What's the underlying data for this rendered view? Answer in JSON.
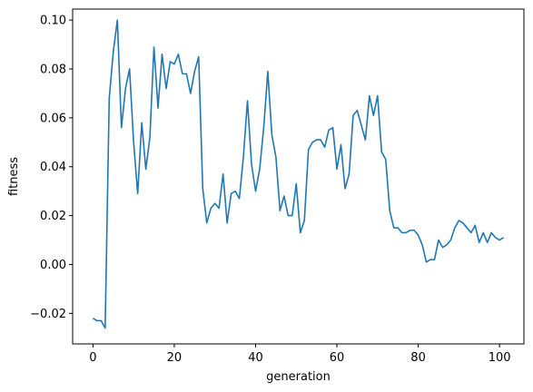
{
  "chart_data": {
    "type": "line",
    "title": "",
    "xlabel": "generation",
    "ylabel": "fitness",
    "xlim": [
      -5,
      106
    ],
    "ylim": [
      -0.0325,
      0.1045
    ],
    "xticks": [
      0,
      20,
      40,
      60,
      80,
      100
    ],
    "xtick_labels": [
      "0",
      "20",
      "40",
      "60",
      "80",
      "100"
    ],
    "yticks": [
      -0.02,
      0.0,
      0.02,
      0.04,
      0.06,
      0.08,
      0.1
    ],
    "ytick_labels": [
      "−0.02",
      "0.00",
      "0.02",
      "0.04",
      "0.06",
      "0.08",
      "0.10"
    ],
    "grid": false,
    "legend": "none",
    "line_color": "#1f77b4",
    "series": [
      {
        "x": [
          0,
          1,
          2,
          3,
          4,
          5,
          6,
          7,
          8,
          9,
          10,
          11,
          12,
          13,
          14,
          15,
          16,
          17,
          18,
          19,
          20,
          21,
          22,
          23,
          24,
          25,
          26,
          27,
          28,
          29,
          30,
          31,
          32,
          33,
          34,
          35,
          36,
          37,
          38,
          39,
          40,
          41,
          42,
          43,
          44,
          45,
          46,
          47,
          48,
          49,
          50,
          51,
          52,
          53,
          54,
          55,
          56,
          57,
          58,
          59,
          60,
          61,
          62,
          63,
          64,
          65,
          66,
          67,
          68,
          69,
          70,
          71,
          72,
          73,
          74,
          75,
          76,
          77,
          78,
          79,
          80,
          81,
          82,
          83,
          84,
          85,
          86,
          87,
          88,
          89,
          90,
          91,
          92,
          93,
          94,
          95,
          96,
          97,
          98,
          99,
          100,
          101
        ],
        "values": [
          -0.022,
          -0.023,
          -0.023,
          -0.026,
          0.068,
          0.087,
          0.1,
          0.056,
          0.072,
          0.08,
          0.05,
          0.029,
          0.058,
          0.039,
          0.052,
          0.089,
          0.064,
          0.086,
          0.072,
          0.083,
          0.082,
          0.086,
          0.078,
          0.078,
          0.07,
          0.079,
          0.085,
          0.031,
          0.017,
          0.023,
          0.025,
          0.023,
          0.037,
          0.017,
          0.029,
          0.03,
          0.027,
          0.044,
          0.067,
          0.041,
          0.03,
          0.039,
          0.056,
          0.079,
          0.053,
          0.044,
          0.022,
          0.028,
          0.02,
          0.02,
          0.033,
          0.013,
          0.018,
          0.047,
          0.05,
          0.051,
          0.051,
          0.048,
          0.055,
          0.056,
          0.039,
          0.049,
          0.031,
          0.037,
          0.061,
          0.063,
          0.057,
          0.051,
          0.069,
          0.061,
          0.069,
          0.046,
          0.043,
          0.022,
          0.015,
          0.015,
          0.013,
          0.013,
          0.014,
          0.014,
          0.012,
          0.008,
          0.001,
          0.002,
          0.002,
          0.01,
          0.007,
          0.008,
          0.01,
          0.015,
          0.018,
          0.017,
          0.015,
          0.013,
          0.016,
          0.009,
          0.013,
          0.009,
          0.013,
          0.011,
          0.01,
          0.011
        ]
      }
    ]
  }
}
